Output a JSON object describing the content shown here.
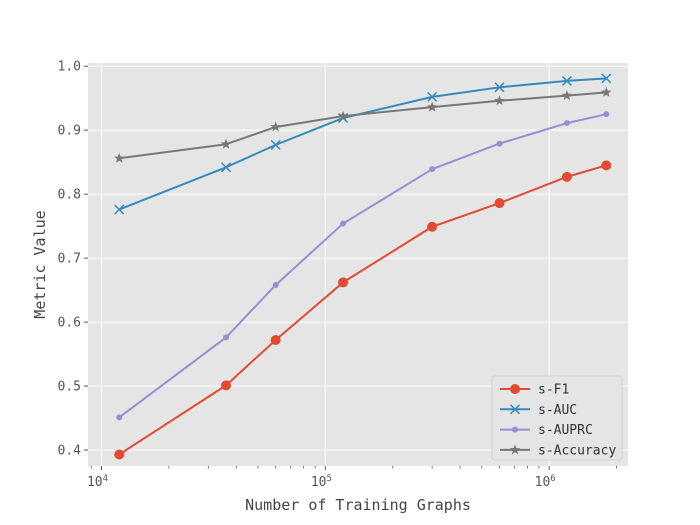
{
  "chart_data": {
    "type": "line",
    "xlabel": "Number of Training Graphs",
    "ylabel": "Metric Value",
    "x_scale": "log",
    "xlim": [
      8700,
      2250000
    ],
    "ylim": [
      0.375,
      1.005
    ],
    "grid": true,
    "legend_position": "bottom-right",
    "x_ticks": [
      {
        "value": 10000,
        "base": "10",
        "exp": "4"
      },
      {
        "value": 100000,
        "base": "10",
        "exp": "5"
      },
      {
        "value": 1000000,
        "base": "10",
        "exp": "6"
      }
    ],
    "y_ticks": [
      {
        "value": 0.4,
        "label": "0.4"
      },
      {
        "value": 0.5,
        "label": "0.5"
      },
      {
        "value": 0.6,
        "label": "0.6"
      },
      {
        "value": 0.7,
        "label": "0.7"
      },
      {
        "value": 0.8,
        "label": "0.8"
      },
      {
        "value": 0.9,
        "label": "0.9"
      },
      {
        "value": 1.0,
        "label": "1.0"
      }
    ],
    "x": [
      12000,
      36000,
      60000,
      120000,
      300000,
      600000,
      1200000,
      1800000
    ],
    "series": [
      {
        "name": "s-F1",
        "color": "#E24A33",
        "marker": "circle",
        "values": [
          0.393,
          0.501,
          0.572,
          0.662,
          0.749,
          0.786,
          0.827,
          0.845
        ]
      },
      {
        "name": "s-AUC",
        "color": "#348ABD",
        "marker": "x",
        "values": [
          0.776,
          0.842,
          0.877,
          0.919,
          0.952,
          0.967,
          0.977,
          0.981
        ]
      },
      {
        "name": "s-AUPRC",
        "color": "#988ED5",
        "marker": "dot",
        "values": [
          0.451,
          0.576,
          0.658,
          0.754,
          0.839,
          0.879,
          0.911,
          0.925
        ]
      },
      {
        "name": "s-Accuracy",
        "color": "#777777",
        "marker": "star",
        "values": [
          0.856,
          0.878,
          0.905,
          0.922,
          0.936,
          0.946,
          0.954,
          0.959
        ]
      }
    ]
  }
}
